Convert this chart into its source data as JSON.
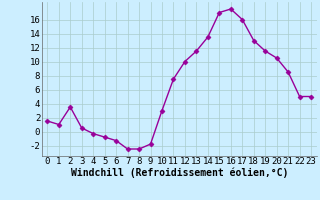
{
  "x": [
    0,
    1,
    2,
    3,
    4,
    5,
    6,
    7,
    8,
    9,
    10,
    11,
    12,
    13,
    14,
    15,
    16,
    17,
    18,
    19,
    20,
    21,
    22,
    23
  ],
  "y": [
    1.5,
    1.0,
    3.5,
    0.5,
    -0.3,
    -0.8,
    -1.3,
    -2.5,
    -2.5,
    -1.8,
    3.0,
    7.5,
    10.0,
    11.5,
    13.5,
    17.0,
    17.5,
    16.0,
    13.0,
    11.5,
    10.5,
    8.5,
    5.0,
    5.0
  ],
  "line_color": "#990099",
  "marker": "D",
  "marker_size": 2.5,
  "bg_color": "#cceeff",
  "grid_color": "#aacccc",
  "xlabel": "Windchill (Refroidissement éolien,°C)",
  "xlabel_fontsize": 7,
  "tick_fontsize": 6.5,
  "ylim": [
    -3.5,
    18.5
  ],
  "xlim": [
    -0.5,
    23.5
  ],
  "yticks": [
    -2,
    0,
    2,
    4,
    6,
    8,
    10,
    12,
    14,
    16
  ],
  "xticks": [
    0,
    1,
    2,
    3,
    4,
    5,
    6,
    7,
    8,
    9,
    10,
    11,
    12,
    13,
    14,
    15,
    16,
    17,
    18,
    19,
    20,
    21,
    22,
    23
  ],
  "line_width": 1.0
}
